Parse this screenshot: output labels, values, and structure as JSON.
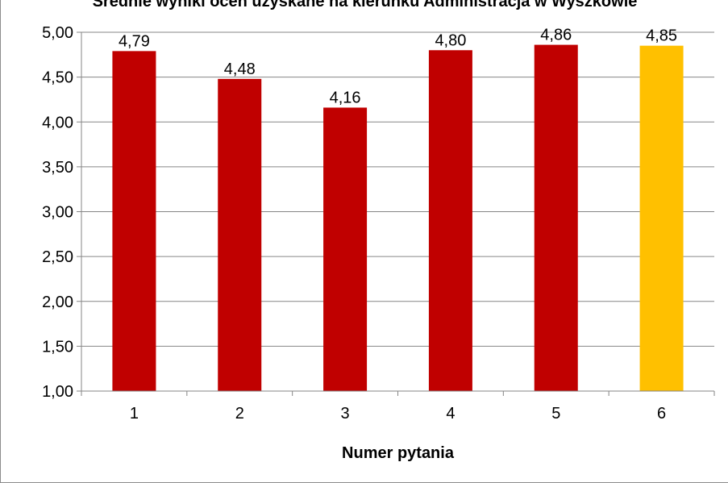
{
  "chart_data": {
    "type": "bar",
    "title": "Średnie wyniki ocen uzyskane na kierunku Administracja w Wyszkowie",
    "xlabel": "Numer pytania",
    "ylabel": "",
    "categories": [
      "1",
      "2",
      "3",
      "4",
      "5",
      "6"
    ],
    "values": [
      4.79,
      4.48,
      4.16,
      4.8,
      4.86,
      4.85
    ],
    "data_labels": [
      "4,79",
      "4,48",
      "4,16",
      "4,80",
      "4,86",
      "4,85"
    ],
    "ylim": [
      1.0,
      5.0
    ],
    "y_ticks": [
      1.0,
      1.5,
      2.0,
      2.5,
      3.0,
      3.5,
      4.0,
      4.5,
      5.0
    ],
    "y_tick_labels": [
      "1,00",
      "1,50",
      "2,00",
      "2,50",
      "3,00",
      "3,50",
      "4,00",
      "4,50",
      "5,00"
    ],
    "bar_colors": [
      "#C00000",
      "#C00000",
      "#C00000",
      "#C00000",
      "#C00000",
      "#FFC000"
    ],
    "grid": true,
    "legend": false
  }
}
